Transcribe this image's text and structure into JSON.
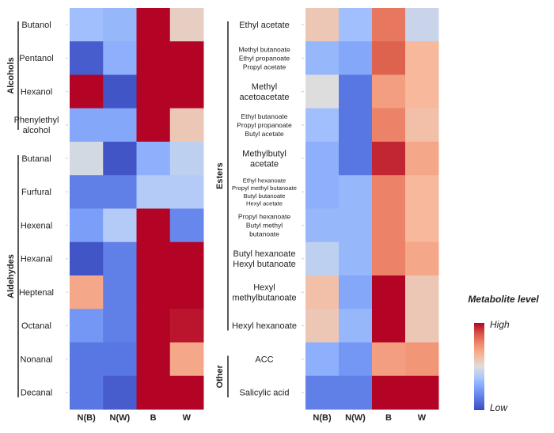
{
  "chart_data": [
    {
      "type": "heatmap",
      "columns": [
        "N(B)",
        "N(W)",
        "B",
        "W"
      ],
      "value_scale": "relative metabolite level, -1 = Low, 1 = High",
      "groups": [
        {
          "name": "Alcohols",
          "rows": [
            "Butanol",
            "Pentanol",
            "Hexanol",
            "Phenylethyl alcohol"
          ]
        },
        {
          "name": "Aldehydes",
          "rows": [
            "Butanal",
            "Furfural",
            "Hexenal",
            "Hexanal",
            "Heptenal",
            "Octanal",
            "Nonanal",
            "Decanal"
          ]
        }
      ],
      "rows": [
        {
          "label": [
            "Butanol"
          ],
          "values": [
            -0.3,
            -0.35,
            1,
            0.1
          ]
        },
        {
          "label": [
            "Pentanol"
          ],
          "values": [
            -0.9,
            -0.4,
            1,
            1
          ]
        },
        {
          "label": [
            "Hexanol"
          ],
          "values": [
            1,
            -0.95,
            1,
            1
          ]
        },
        {
          "label": [
            "Phenylethyl",
            "alcohol"
          ],
          "values": [
            -0.45,
            -0.45,
            1,
            0.15
          ]
        },
        {
          "label": [
            "Butanal"
          ],
          "values": [
            -0.05,
            -0.95,
            -0.4,
            -0.15
          ]
        },
        {
          "label": [
            "Furfural"
          ],
          "values": [
            -0.7,
            -0.7,
            -0.2,
            -0.2
          ]
        },
        {
          "label": [
            "Hexenal"
          ],
          "values": [
            -0.5,
            -0.2,
            1,
            -0.65
          ]
        },
        {
          "label": [
            "Hexanal"
          ],
          "values": [
            -0.95,
            -0.7,
            1,
            1
          ]
        },
        {
          "label": [
            "Heptenal"
          ],
          "values": [
            0.35,
            -0.7,
            1,
            1
          ]
        },
        {
          "label": [
            "Octanal"
          ],
          "values": [
            -0.55,
            -0.7,
            1,
            0.95
          ]
        },
        {
          "label": [
            "Nonanal"
          ],
          "values": [
            -0.75,
            -0.75,
            1,
            0.35
          ]
        },
        {
          "label": [
            "Decanal"
          ],
          "values": [
            -0.75,
            -0.9,
            1,
            1
          ]
        }
      ]
    },
    {
      "type": "heatmap",
      "columns": [
        "N(B)",
        "N(W)",
        "B",
        "W"
      ],
      "value_scale": "relative metabolite level, -1 = Low, 1 = High",
      "groups": [
        {
          "name": "Esters",
          "rows": [
            "Ethyl acetate",
            "Methyl butanoate / Ethyl propanoate / Propyl acetate",
            "Methyl acetoacetate",
            "Ethyl butanoate / Propyl propanoate / Butyl acetate",
            "Methylbutyl acetate",
            "Ethyl hexanoate / Propyl methyl butanoate / Butyl butanoate / Hexyl acetate",
            "Propyl hexanoate / Butyl methyl butanoate",
            "Butyl hexanoate / Hexyl butanoate",
            "Hexyl methylbutanoate",
            "Hexyl hexanoate"
          ]
        },
        {
          "name": "Other",
          "rows": [
            "ACC",
            "Salicylic acid"
          ]
        }
      ],
      "rows": [
        {
          "label": [
            "Ethyl acetate"
          ],
          "values": [
            0.15,
            -0.3,
            0.6,
            -0.1
          ]
        },
        {
          "label": [
            "Methyl butanoate",
            "Ethyl propanoate",
            "Propyl acetate"
          ],
          "values": [
            -0.35,
            -0.45,
            0.7,
            0.25
          ]
        },
        {
          "label": [
            "Methyl",
            "acetoacetate"
          ],
          "values": [
            0.0,
            -0.75,
            0.4,
            0.25
          ]
        },
        {
          "label": [
            "Ethyl butanoate",
            "Propyl propanoate",
            "Butyl acetate"
          ],
          "values": [
            -0.3,
            -0.75,
            0.55,
            0.2
          ]
        },
        {
          "label": [
            "Methylbutyl",
            "acetate"
          ],
          "values": [
            -0.4,
            -0.75,
            0.9,
            0.35
          ]
        },
        {
          "label": [
            "Ethyl hexanoate",
            "Propyl methyl butanoate",
            "Butyl butanoate",
            "Hexyl acetate"
          ],
          "values": [
            -0.4,
            -0.35,
            0.55,
            0.25
          ]
        },
        {
          "label": [
            "Propyl hexanoate",
            "Butyl methyl",
            "butanoate"
          ],
          "values": [
            -0.35,
            -0.35,
            0.55,
            0.25
          ]
        },
        {
          "label": [
            "Butyl hexanoate",
            "Hexyl butanoate"
          ],
          "values": [
            -0.15,
            -0.35,
            0.55,
            0.35
          ]
        },
        {
          "label": [
            "Hexyl",
            "methylbutanoate"
          ],
          "values": [
            0.2,
            -0.45,
            1,
            0.15
          ]
        },
        {
          "label": [
            "Hexyl hexanoate"
          ],
          "values": [
            0.15,
            -0.35,
            1,
            0.15
          ]
        },
        {
          "label": [
            "ACC"
          ],
          "values": [
            -0.4,
            -0.55,
            0.4,
            0.45
          ]
        },
        {
          "label": [
            "Salicylic acid"
          ],
          "values": [
            -0.7,
            -0.7,
            1,
            1
          ]
        }
      ]
    }
  ],
  "legend": {
    "title": "Metabolite level",
    "high": "High",
    "low": "Low",
    "colormap": [
      "#3b4cc0",
      "#5977e3",
      "#7b9ff9",
      "#aac7fd",
      "#dddddd",
      "#f7b89c",
      "#f18d6f",
      "#d95847",
      "#b40426"
    ]
  }
}
